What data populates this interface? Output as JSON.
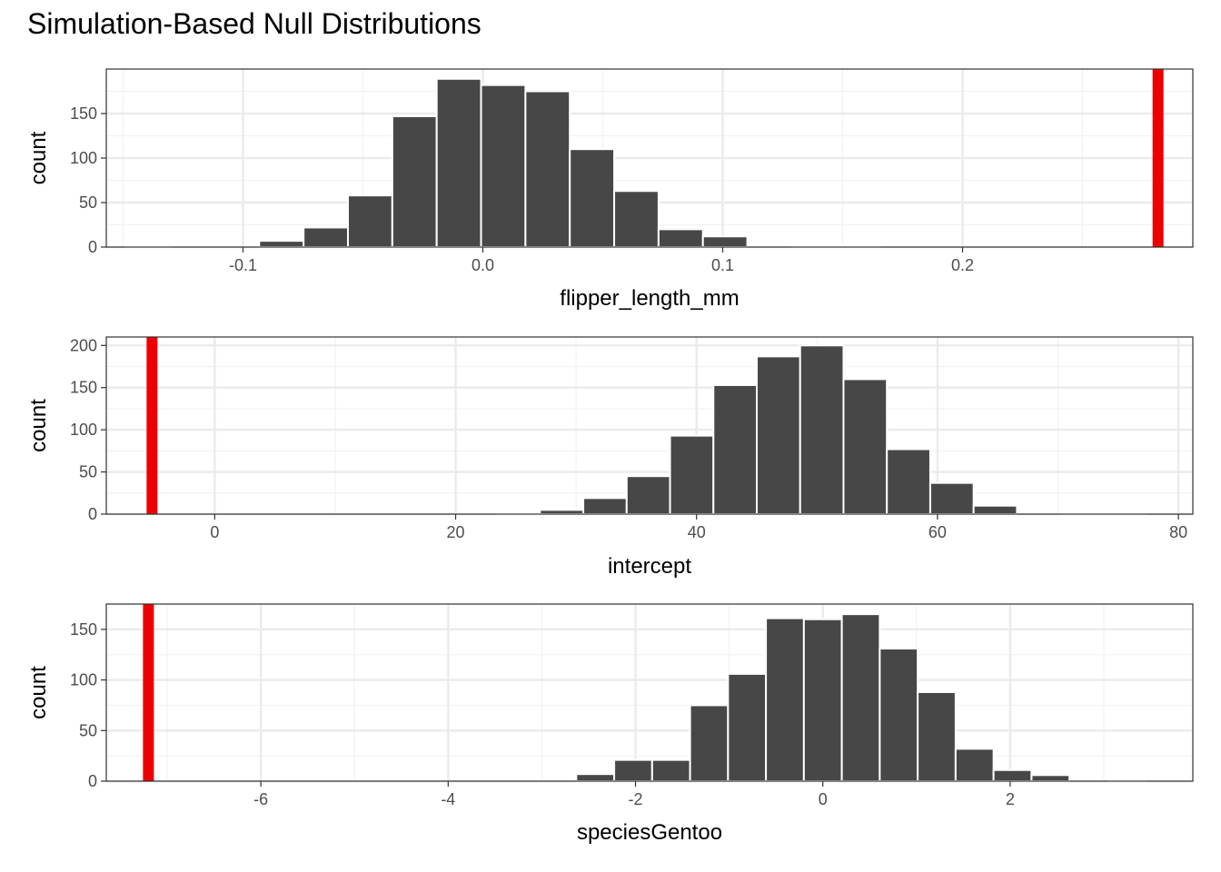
{
  "title": "Simulation-Based Null Distributions",
  "colors": {
    "bar_fill": "#474747",
    "bar_stroke": "#ffffff",
    "observed_line": "#ee0000",
    "grid_major": "#ebebeb",
    "grid_minor": "#f2f2f2",
    "panel_border": "#333333"
  },
  "chart_data": [
    {
      "type": "bar",
      "subtype": "histogram",
      "xlabel": "flipper_length_mm",
      "ylabel": "count",
      "xlim": [
        -0.157,
        0.296
      ],
      "ylim": [
        0,
        200
      ],
      "x_ticks": [
        -0.1,
        0.0,
        0.1,
        0.2
      ],
      "x_tick_labels": [
        "-0.1",
        "0.0",
        "0.1",
        "0.2"
      ],
      "y_ticks": [
        0,
        50,
        100,
        150
      ],
      "y_tick_labels": [
        "0",
        "50",
        "100",
        "150"
      ],
      "bin_width": 0.0185,
      "bin_centers": [
        -0.1395,
        -0.121,
        -0.1025,
        -0.084,
        -0.0655,
        -0.047,
        -0.0285,
        -0.01,
        0.0085,
        0.027,
        0.0455,
        0.064,
        0.0825,
        0.101,
        0.1195,
        0.138,
        0.1565,
        0.175,
        0.1935,
        0.212,
        0.2305,
        0.249
      ],
      "counts": [
        1,
        0,
        0,
        7,
        22,
        58,
        147,
        189,
        182,
        175,
        110,
        63,
        20,
        12,
        0,
        1,
        1,
        0,
        0,
        0,
        0,
        0
      ],
      "observed": 0.2815,
      "grid": true
    },
    {
      "type": "bar",
      "subtype": "histogram",
      "xlabel": "intercept",
      "ylabel": "count",
      "xlim": [
        -9,
        81.2
      ],
      "ylim": [
        0,
        210
      ],
      "x_ticks": [
        0,
        20,
        40,
        60,
        80
      ],
      "x_tick_labels": [
        "0",
        "20",
        "40",
        "60",
        "80"
      ],
      "y_ticks": [
        0,
        50,
        100,
        150,
        200
      ],
      "y_tick_labels": [
        "0",
        "50",
        "100",
        "150",
        "200"
      ],
      "bin_width": 3.6,
      "bin_centers": [
        25.2,
        28.8,
        32.4,
        36.0,
        39.6,
        43.2,
        46.8,
        50.4,
        54.0,
        57.6,
        61.2,
        64.8,
        68.4,
        72.0,
        75.6
      ],
      "counts": [
        1,
        5,
        19,
        45,
        93,
        153,
        187,
        200,
        160,
        77,
        37,
        10,
        0,
        1,
        1
      ],
      "observed": -5.2,
      "grid": true
    },
    {
      "type": "bar",
      "subtype": "histogram",
      "xlabel": "speciesGentoo",
      "ylabel": "count",
      "xlim": [
        -7.65,
        3.95
      ],
      "ylim": [
        0,
        175
      ],
      "x_ticks": [
        -6,
        -4,
        -2,
        0,
        2
      ],
      "x_tick_labels": [
        "-6",
        "-4",
        "-2",
        "0",
        "2"
      ],
      "y_ticks": [
        0,
        50,
        100,
        150
      ],
      "y_tick_labels": [
        "0",
        "50",
        "100",
        "150"
      ],
      "bin_width": 0.405,
      "bin_centers": [
        -2.43,
        -2.025,
        -1.62,
        -1.215,
        -0.81,
        -0.405,
        0.0,
        0.405,
        0.81,
        1.215,
        1.62,
        2.025,
        2.43,
        2.835,
        3.24
      ],
      "counts": [
        7,
        21,
        21,
        75,
        106,
        161,
        160,
        165,
        131,
        88,
        32,
        11,
        6,
        0,
        1
      ],
      "observed": -7.2,
      "grid": true
    }
  ]
}
